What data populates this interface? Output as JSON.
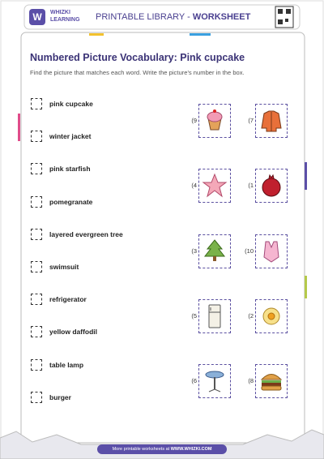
{
  "header": {
    "brand": "WHIZKI",
    "brand_sub": "LEARNING",
    "library": "PRINTABLE LIBRARY - ",
    "library_bold": "WORKSHEET"
  },
  "title": "Numbered Picture Vocabulary: Pink cupcake",
  "instructions": "Find the picture that matches each word. Write the picture's number in the box.",
  "words": [
    "pink cupcake",
    "winter jacket",
    "pink starfish",
    "pomegranate",
    "layered evergreen tree",
    "swimsuit",
    "refrigerator",
    "yellow daffodil",
    "table lamp",
    "burger"
  ],
  "pictures": [
    [
      {
        "number": "9)",
        "picture": "cupcake"
      },
      {
        "number": "7)",
        "picture": "jacket"
      }
    ],
    [
      {
        "number": "4)",
        "picture": "starfish"
      },
      {
        "number": "1)",
        "picture": "pomegranate"
      }
    ],
    [
      {
        "number": "3)",
        "picture": "tree"
      },
      {
        "number": "10)",
        "picture": "swimsuit"
      }
    ],
    [
      {
        "number": "5)",
        "picture": "refrigerator"
      },
      {
        "number": "2)",
        "picture": "daffodil"
      }
    ],
    [
      {
        "number": "6)",
        "picture": "lamp"
      },
      {
        "number": "8)",
        "picture": "burger"
      }
    ]
  ],
  "footer": {
    "text": "More printable worksheets at ",
    "url": "WWW.WHIZKI.COM"
  }
}
